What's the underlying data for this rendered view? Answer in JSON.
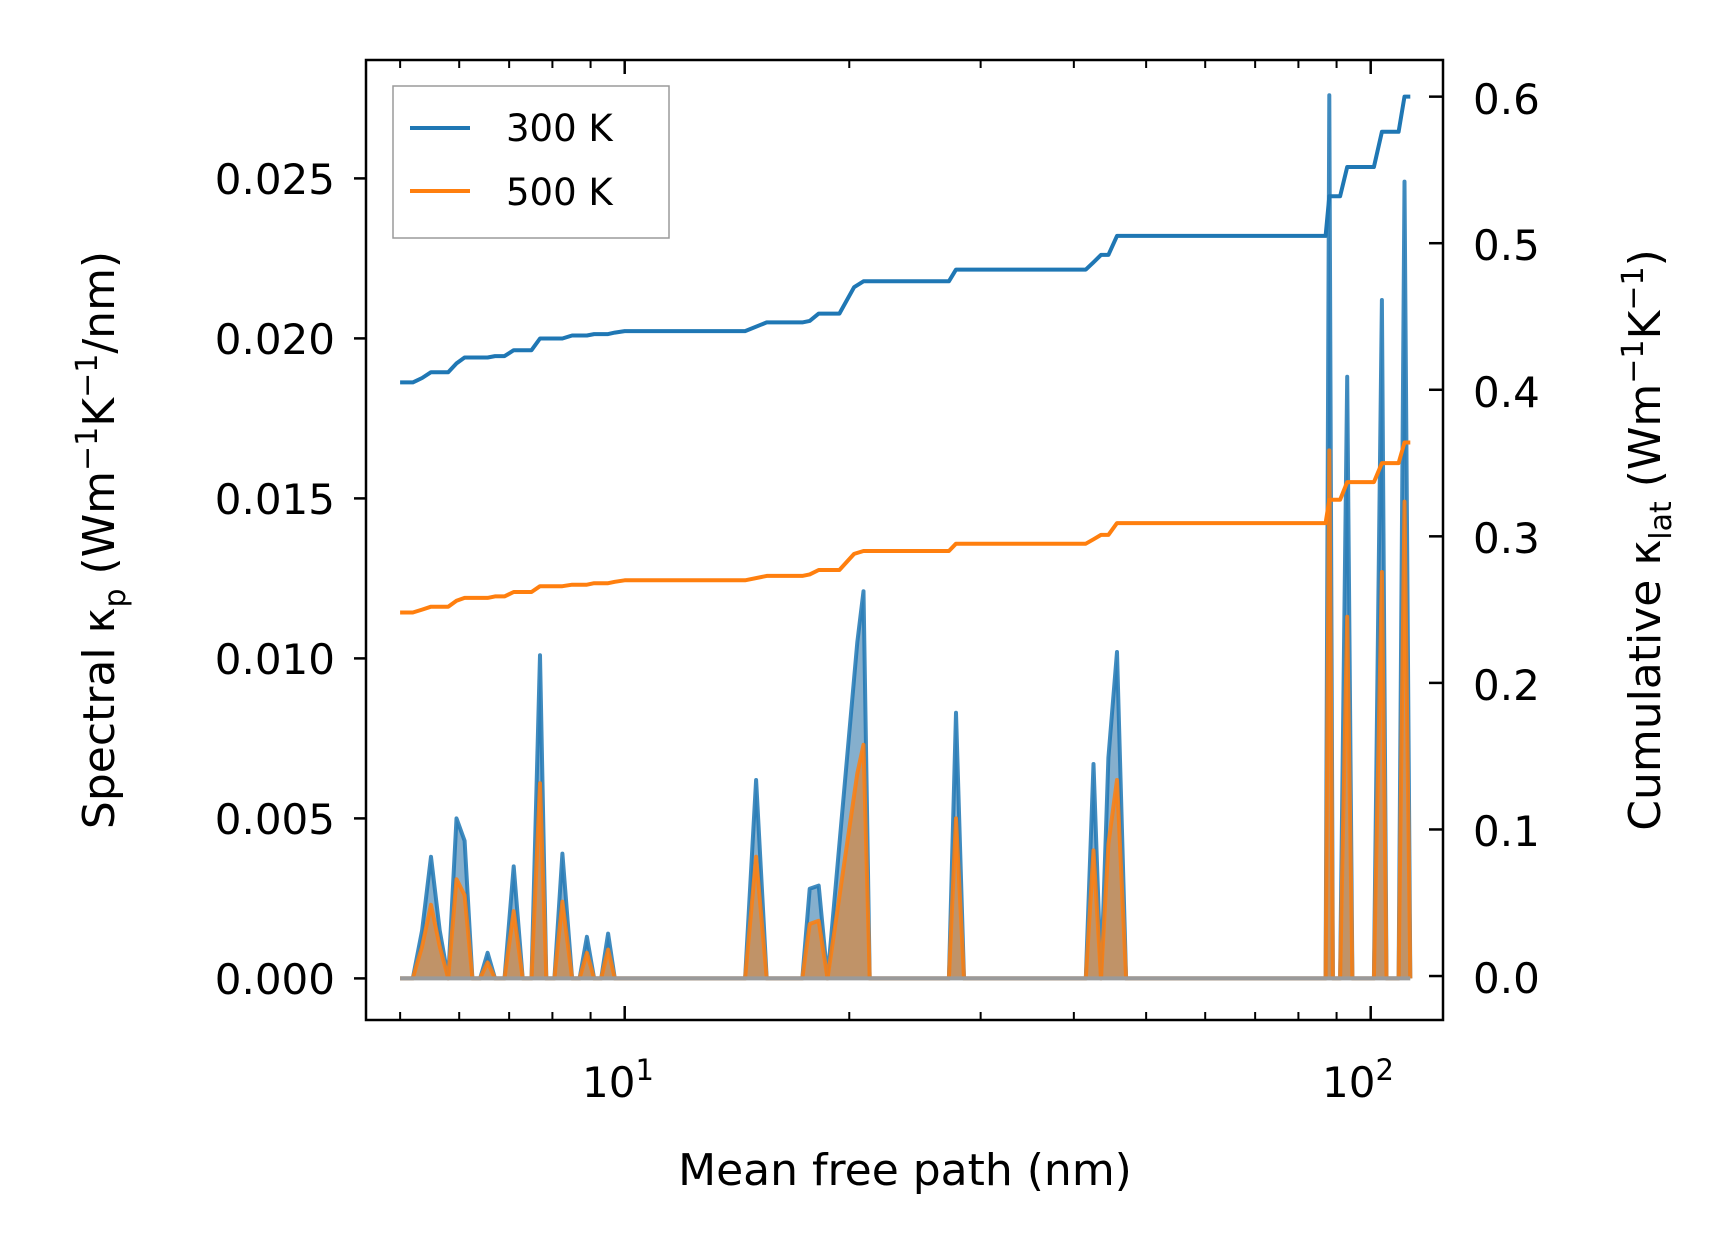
{
  "colors": {
    "series_300K": "#1f77b4",
    "series_500K": "#ff7f0e",
    "fill_gray": "#888888"
  },
  "chart_data": {
    "type": "line",
    "xscale": "log",
    "xlabel": "Mean free path (nm)",
    "xlim": [
      4.5,
      125
    ],
    "xticks": [
      {
        "value": 10,
        "base": "10",
        "exp": "1"
      },
      {
        "value": 100,
        "base": "10",
        "exp": "2"
      }
    ],
    "left_axis": {
      "label_parts": [
        "Spectral κ",
        "p",
        " (Wm",
        "−1",
        "K",
        "−1",
        "/nm)"
      ],
      "ylim": [
        -0.0013,
        0.0287
      ],
      "ticks": [
        "0.000",
        "0.005",
        "0.010",
        "0.015",
        "0.020",
        "0.025"
      ]
    },
    "right_axis": {
      "label_parts": [
        "Cumulative κ",
        "lat",
        " (Wm",
        "−1",
        "K",
        "−1",
        ")"
      ],
      "ylim": [
        -0.03,
        0.625
      ],
      "ticks": [
        "0.0",
        "0.1",
        "0.2",
        "0.3",
        "0.4",
        "0.5",
        "0.6"
      ]
    },
    "legend": {
      "position": "top-left",
      "entries": [
        "300 K",
        "500 K"
      ]
    },
    "spectral": {
      "axis": "left",
      "x": [
        5,
        5.2,
        5.35,
        5.5,
        5.65,
        5.8,
        5.95,
        6.1,
        6.25,
        6.4,
        6.55,
        6.7,
        6.9,
        7.1,
        7.3,
        7.5,
        7.7,
        7.85,
        8.05,
        8.25,
        8.5,
        8.7,
        8.9,
        9.1,
        9.3,
        9.5,
        9.7,
        9.9,
        10.1,
        10.3,
        10.5,
        14.5,
        15.0,
        15.5,
        17.3,
        17.7,
        18.2,
        18.7,
        20.5,
        20.9,
        21.3,
        27.2,
        27.8,
        28.5,
        41.5,
        42.5,
        43.5,
        44.5,
        45.7,
        47.0,
        87,
        88,
        89,
        91,
        93,
        94.5,
        101,
        103.5,
        105,
        109,
        111,
        113
      ],
      "series": [
        {
          "name": "300 K",
          "values": [
            0,
            0,
            0.0015,
            0.0038,
            0.0015,
            0,
            0.005,
            0.0043,
            0,
            0,
            0.0008,
            0,
            0,
            0.0035,
            0,
            0,
            0.0101,
            0,
            0,
            0.0039,
            0,
            0,
            0.0013,
            0,
            0,
            0.0014,
            0,
            0,
            0,
            0,
            0,
            0,
            0.0062,
            0,
            0,
            0.0028,
            0.0029,
            0,
            0.0105,
            0.0121,
            0,
            0,
            0.0083,
            0,
            0,
            0.0067,
            0,
            0.0069,
            0.0102,
            0,
            0,
            0.0276,
            0,
            0,
            0.0188,
            0,
            0,
            0.0212,
            0,
            0,
            0.0249,
            0
          ]
        },
        {
          "name": "500 K",
          "values": [
            0,
            0,
            0.001,
            0.0023,
            0.001,
            0,
            0.0031,
            0.0026,
            0,
            0,
            0.0005,
            0,
            0,
            0.0021,
            0,
            0,
            0.0061,
            0,
            0,
            0.0024,
            0,
            0,
            0.0008,
            0,
            0,
            0.0009,
            0,
            0,
            0,
            0,
            0,
            0,
            0.0038,
            0,
            0,
            0.0017,
            0.0018,
            0,
            0.0064,
            0.0073,
            0,
            0,
            0.005,
            0,
            0,
            0.004,
            0,
            0.0042,
            0.0062,
            0,
            0,
            0.0165,
            0,
            0,
            0.0113,
            0,
            0,
            0.0127,
            0,
            0,
            0.0149,
            0
          ]
        }
      ]
    },
    "cumulative": {
      "axis": "right",
      "series": [
        {
          "name": "300 K",
          "x": [
            5,
            5.2,
            5.35,
            5.5,
            5.8,
            5.95,
            6.1,
            6.55,
            6.7,
            6.9,
            7.1,
            7.5,
            7.7,
            8.25,
            8.5,
            8.9,
            9.1,
            9.5,
            9.7,
            10,
            14.5,
            15.5,
            17.3,
            17.7,
            18.2,
            19.4,
            20.3,
            20.9,
            21.3,
            27.2,
            27.8,
            28.5,
            41.5,
            42.5,
            43.5,
            44.5,
            45.7,
            87,
            88,
            91,
            93,
            94.5,
            101,
            103.5,
            105,
            109,
            111,
            113
          ],
          "values": [
            0.405,
            0.405,
            0.408,
            0.412,
            0.412,
            0.418,
            0.422,
            0.422,
            0.423,
            0.423,
            0.427,
            0.427,
            0.435,
            0.435,
            0.437,
            0.437,
            0.438,
            0.438,
            0.439,
            0.44,
            0.44,
            0.446,
            0.446,
            0.447,
            0.452,
            0.452,
            0.47,
            0.474,
            0.474,
            0.474,
            0.482,
            0.482,
            0.482,
            0.487,
            0.492,
            0.492,
            0.505,
            0.505,
            0.532,
            0.532,
            0.552,
            0.552,
            0.552,
            0.576,
            0.576,
            0.576,
            0.6,
            0.6
          ]
        },
        {
          "name": "500 K",
          "x": [
            5,
            5.2,
            5.35,
            5.5,
            5.8,
            5.95,
            6.1,
            6.55,
            6.7,
            6.9,
            7.1,
            7.5,
            7.7,
            8.25,
            8.5,
            8.9,
            9.1,
            9.5,
            9.7,
            10,
            14.5,
            15.5,
            17.3,
            17.7,
            18.2,
            19.4,
            20.3,
            20.9,
            21.3,
            27.2,
            27.8,
            28.5,
            41.5,
            42.5,
            43.5,
            44.5,
            45.7,
            87,
            88,
            91,
            93,
            94.5,
            101,
            103.5,
            105,
            109,
            111,
            113
          ],
          "values": [
            0.248,
            0.248,
            0.25,
            0.252,
            0.252,
            0.256,
            0.258,
            0.258,
            0.259,
            0.259,
            0.262,
            0.262,
            0.266,
            0.266,
            0.267,
            0.267,
            0.268,
            0.268,
            0.269,
            0.27,
            0.27,
            0.273,
            0.273,
            0.274,
            0.277,
            0.277,
            0.288,
            0.29,
            0.29,
            0.29,
            0.295,
            0.295,
            0.295,
            0.298,
            0.301,
            0.301,
            0.309,
            0.309,
            0.325,
            0.325,
            0.337,
            0.337,
            0.337,
            0.35,
            0.35,
            0.35,
            0.364,
            0.364
          ]
        }
      ]
    }
  }
}
